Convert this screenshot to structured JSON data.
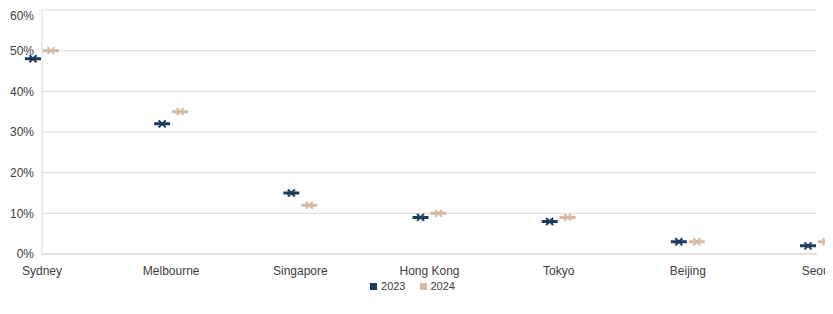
{
  "chart_data": {
    "type": "scatter",
    "categories": [
      "Sydney",
      "Melbourne",
      "Singapore",
      "Hong Kong",
      "Tokyo",
      "Beijing",
      "Seoul"
    ],
    "series": [
      {
        "name": "2023",
        "color": "#1c3a5a",
        "marker": "x",
        "values": [
          48,
          32,
          15,
          9,
          8,
          3,
          2
        ]
      },
      {
        "name": "2024",
        "color": "#d5bba3",
        "marker": "x",
        "values": [
          50,
          35,
          12,
          10,
          9,
          3,
          3
        ]
      }
    ],
    "ylim": [
      0,
      60
    ],
    "yticks": [
      {
        "value": 0,
        "label": "0%"
      },
      {
        "value": 10,
        "label": "10%"
      },
      {
        "value": 20,
        "label": "20%"
      },
      {
        "value": 30,
        "label": "30%"
      },
      {
        "value": 40,
        "label": "40%"
      },
      {
        "value": 50,
        "label": "50%"
      },
      {
        "value": 60,
        "label": "60%"
      }
    ],
    "grid": true,
    "legend": "bottom"
  }
}
